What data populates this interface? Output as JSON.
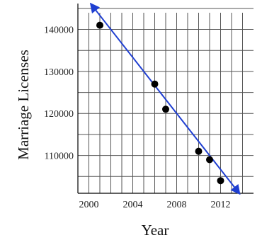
{
  "chart_data": {
    "type": "scatter",
    "xlabel": "Year",
    "ylabel": "Marriage Licenses",
    "xlim": [
      1999,
      2015
    ],
    "ylim": [
      101000,
      147000
    ],
    "x_ticks": [
      2000,
      2004,
      2008,
      2012
    ],
    "y_ticks": [
      110000,
      120000,
      130000,
      140000
    ],
    "grid": true,
    "points": [
      {
        "x": 2001,
        "y": 141000
      },
      {
        "x": 2006,
        "y": 127000
      },
      {
        "x": 2007,
        "y": 121000
      },
      {
        "x": 2010,
        "y": 111000
      },
      {
        "x": 2011,
        "y": 109000
      },
      {
        "x": 2012,
        "y": 104000
      }
    ],
    "trend_line": {
      "start": {
        "x": 2000.2,
        "y": 146000
      },
      "end": {
        "x": 2013.7,
        "y": 101000
      }
    },
    "point_color": "#000000",
    "line_color": "#1f3fd1"
  }
}
